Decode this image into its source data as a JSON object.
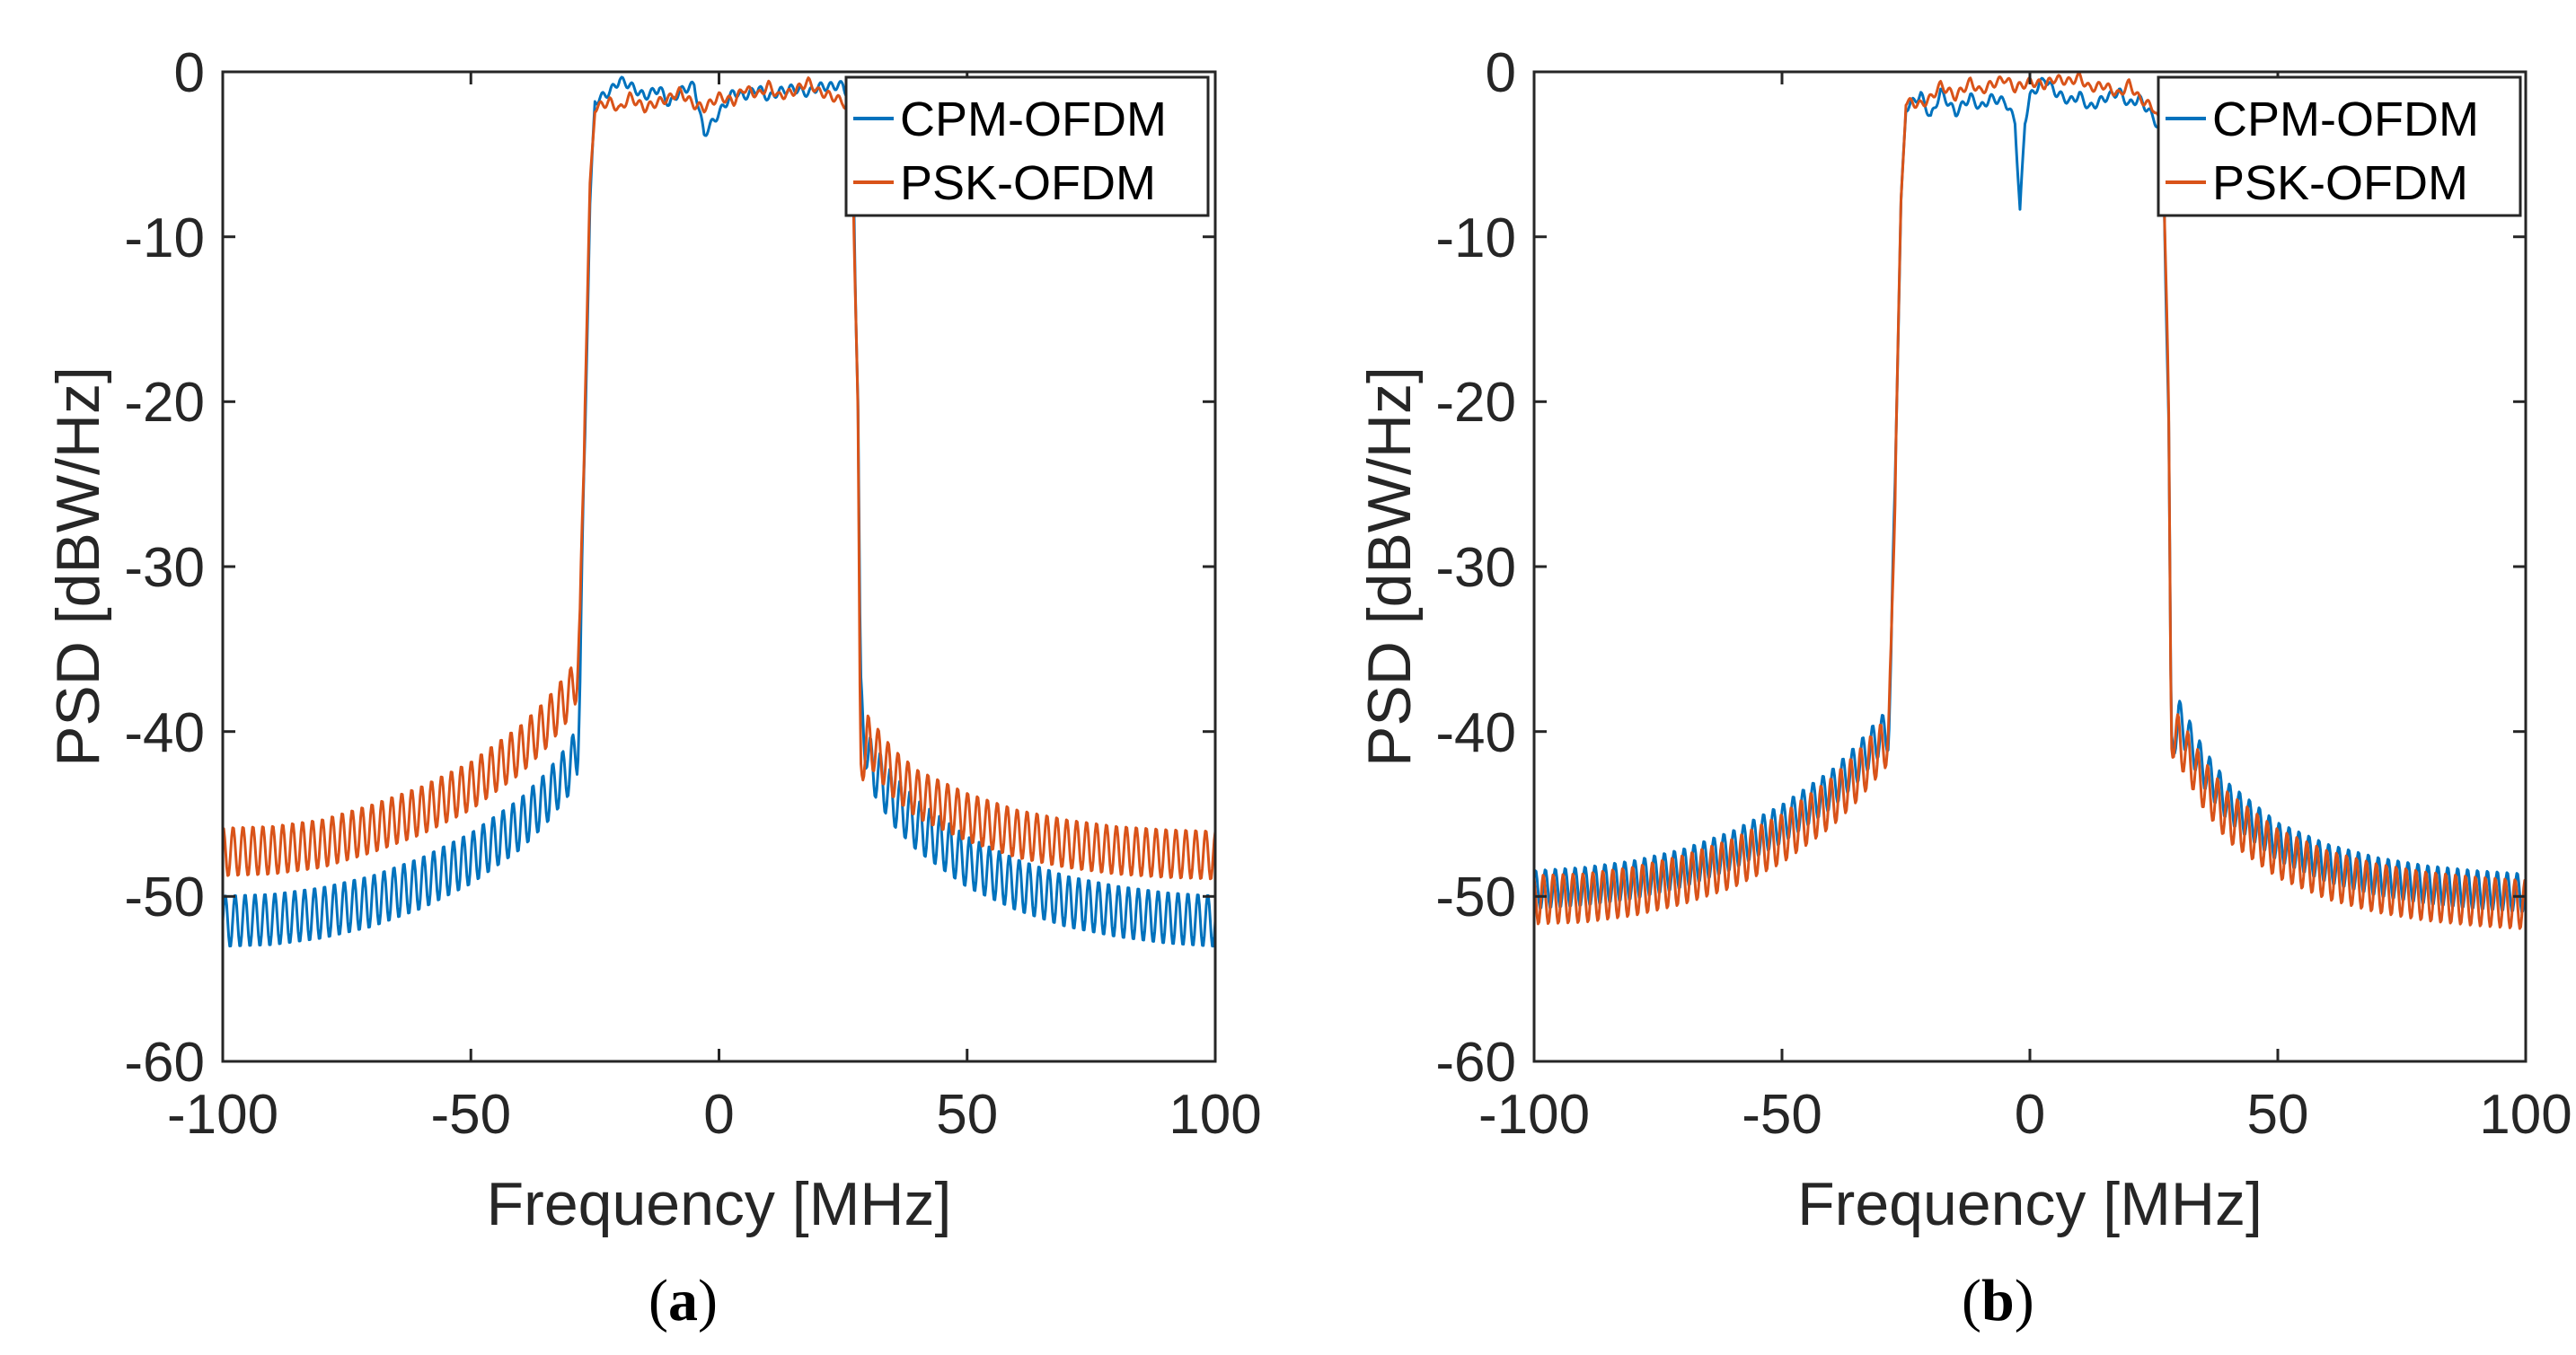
{
  "colors": {
    "cpm": "#0072BD",
    "psk": "#D95319",
    "axis": "#262626",
    "background": "#ffffff"
  },
  "chart_data": [
    {
      "type": "line",
      "panel_label": {
        "open": "(",
        "letter": "a",
        "close": ")"
      },
      "xlabel": "Frequency [MHz]",
      "ylabel": "PSD [dBW/Hz]",
      "xlim": [
        -100,
        100
      ],
      "ylim": [
        -60,
        0
      ],
      "xticks": [
        -100,
        -50,
        0,
        50,
        100
      ],
      "xtick_labels": [
        "-100",
        "-50",
        "0",
        "50",
        "100"
      ],
      "yticks": [
        0,
        -10,
        -20,
        -30,
        -40,
        -50,
        -60
      ],
      "ytick_labels": [
        "0",
        "-10",
        "-20",
        "-30",
        "-40",
        "-50",
        "-60"
      ],
      "grid": false,
      "legend": "top-right",
      "series": [
        {
          "name": "CPM-OFDM",
          "color": "#0072BD",
          "x": [
            -100,
            -90,
            -80,
            -70,
            -60,
            -50,
            -40,
            -35,
            -30,
            -28.5,
            -28,
            -27,
            -26,
            -25,
            -22,
            -20,
            -18,
            -15,
            -12,
            -10,
            -8,
            -5,
            -3,
            0,
            3,
            5,
            8,
            10,
            12,
            15,
            18,
            20,
            22,
            25,
            26,
            27,
            28,
            28.5,
            30,
            35,
            40,
            50,
            60,
            70,
            80,
            90,
            100
          ],
          "y": [
            -51.5,
            -51.4,
            -51,
            -50.3,
            -49.2,
            -47.7,
            -45.6,
            -44.1,
            -42.2,
            -41,
            -37,
            -22,
            -8,
            -1.8,
            -1.2,
            -0.5,
            -0.8,
            -1.5,
            -1,
            -2,
            -1.2,
            -0.8,
            -3.8,
            -2.5,
            -1.2,
            -1.5,
            -1,
            -1.6,
            -1.2,
            -1,
            -1.3,
            -0.9,
            -0.9,
            -0.8,
            -1.5,
            -4,
            -20,
            -38,
            -41.7,
            -44.1,
            -45.7,
            -47.9,
            -49.3,
            -50.3,
            -50.9,
            -51.3,
            -51.5
          ],
          "ripple": 1.6,
          "ripple_period": 2
        },
        {
          "name": "PSK-OFDM",
          "color": "#D95319",
          "x": [
            -100,
            -90,
            -80,
            -70,
            -60,
            -50,
            -40,
            -35,
            -30,
            -28.5,
            -28,
            -27,
            -26,
            -25,
            -22,
            -20,
            -18,
            -15,
            -12,
            -10,
            -8,
            -5,
            -3,
            0,
            3,
            5,
            8,
            10,
            12,
            15,
            18,
            20,
            22,
            25,
            26,
            27,
            28,
            28.5,
            30,
            35,
            40,
            50,
            60,
            70,
            80,
            90,
            100
          ],
          "y": [
            -47.3,
            -47.2,
            -46.8,
            -45.9,
            -44.8,
            -43.3,
            -41.1,
            -39.6,
            -37.7,
            -36.5,
            -34,
            -20,
            -7,
            -2.2,
            -1.8,
            -2.3,
            -1.5,
            -2.2,
            -1.8,
            -1.6,
            -1.2,
            -2.0,
            -2.2,
            -1.5,
            -1.8,
            -1.0,
            -1.4,
            -0.8,
            -1.5,
            -1.2,
            -0.6,
            -1.2,
            -1.4,
            -1.8,
            -2.5,
            -5,
            -22,
            -42,
            -40.5,
            -42.5,
            -43.8,
            -45.2,
            -46.2,
            -46.8,
            -47.2,
            -47.4,
            -47.5
          ],
          "ripple": 1.5,
          "ripple_period": 2
        }
      ]
    },
    {
      "type": "line",
      "panel_label": {
        "open": "(",
        "letter": "b",
        "close": ")"
      },
      "xlabel": "Frequency [MHz]",
      "ylabel": "PSD [dBW/Hz]",
      "xlim": [
        -100,
        100
      ],
      "ylim": [
        -60,
        0
      ],
      "xticks": [
        -100,
        -50,
        0,
        50,
        100
      ],
      "xtick_labels": [
        "-100",
        "-50",
        "0",
        "50",
        "100"
      ],
      "yticks": [
        0,
        -10,
        -20,
        -30,
        -40,
        -50,
        -60
      ],
      "ytick_labels": [
        "0",
        "-10",
        "-20",
        "-30",
        "-40",
        "-50",
        "-60"
      ],
      "grid": false,
      "legend": "top-right",
      "series": [
        {
          "name": "CPM-OFDM",
          "color": "#0072BD",
          "x": [
            -100,
            -90,
            -80,
            -70,
            -60,
            -50,
            -40,
            -35,
            -30,
            -28.5,
            -28,
            -27,
            -26,
            -25,
            -22,
            -20,
            -18,
            -15,
            -12,
            -10,
            -8,
            -5,
            -3,
            -2,
            -1,
            0,
            3,
            5,
            8,
            10,
            12,
            15,
            18,
            20,
            22,
            25,
            26,
            27,
            28,
            28.5,
            30,
            35,
            40,
            50,
            60,
            70,
            80,
            90,
            100
          ],
          "y": [
            -49.6,
            -49.4,
            -49,
            -48.3,
            -47.2,
            -45.6,
            -43.5,
            -42,
            -40.2,
            -40,
            -36,
            -22,
            -8,
            -2.2,
            -1.4,
            -2.8,
            -1.2,
            -2.5,
            -1.5,
            -2.2,
            -1.6,
            -1.8,
            -3,
            -8.5,
            -3,
            -1.5,
            -0.4,
            -1.2,
            -1.8,
            -1.4,
            -2.2,
            -1.6,
            -1.2,
            -2.0,
            -1.6,
            -2.8,
            -3.5,
            -5.5,
            -22,
            -41,
            -39.2,
            -42.2,
            -44.3,
            -46.7,
            -48.0,
            -48.8,
            -49.3,
            -49.6,
            -49.8
          ],
          "ripple": 1.2,
          "ripple_period": 2
        },
        {
          "name": "PSK-OFDM",
          "color": "#D95319",
          "x": [
            -100,
            -90,
            -80,
            -70,
            -60,
            -50,
            -40,
            -35,
            -30,
            -28.5,
            -28,
            -27,
            -26,
            -25,
            -22,
            -20,
            -18,
            -15,
            -12,
            -10,
            -8,
            -5,
            -3,
            0,
            3,
            5,
            8,
            10,
            12,
            15,
            18,
            20,
            22,
            25,
            26,
            27,
            28,
            28.5,
            30,
            35,
            40,
            50,
            60,
            70,
            80,
            90,
            100
          ],
          "y": [
            -50.2,
            -50.1,
            -49.7,
            -49,
            -48,
            -46.5,
            -44.3,
            -42.8,
            -41,
            -40.5,
            -36,
            -22,
            -8,
            -1.8,
            -2.0,
            -1.6,
            -0.8,
            -1.5,
            -0.6,
            -1.2,
            -0.8,
            -0.4,
            -1.0,
            -0.6,
            -0.8,
            -0.4,
            -0.6,
            -0.3,
            -1.0,
            -0.8,
            -1.4,
            -0.7,
            -1.6,
            -2.2,
            -3.0,
            -5.5,
            -22,
            -40,
            -40.5,
            -43.2,
            -45.2,
            -47.4,
            -48.7,
            -49.5,
            -50,
            -50.3,
            -50.5
          ],
          "ripple": 1.5,
          "ripple_period": 2
        }
      ]
    }
  ]
}
